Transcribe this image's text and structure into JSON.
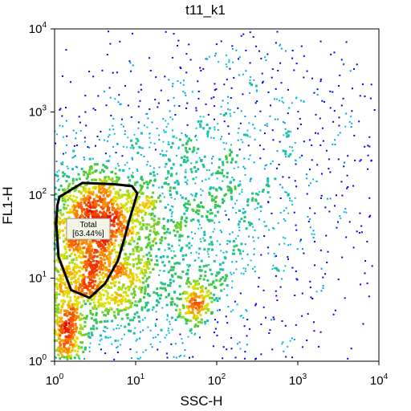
{
  "chart_data": {
    "type": "scatter",
    "title": "t11_k1",
    "xlabel": "SSC-H",
    "ylabel": "FL1-H",
    "x_scale": "log",
    "y_scale": "log",
    "xlim": [
      1,
      10000
    ],
    "ylim": [
      1,
      10000
    ],
    "x_ticks": [
      {
        "value": 1,
        "mantissa": "10",
        "exp": "0"
      },
      {
        "value": 10,
        "mantissa": "10",
        "exp": "1"
      },
      {
        "value": 100,
        "mantissa": "10",
        "exp": "2"
      },
      {
        "value": 1000,
        "mantissa": "10",
        "exp": "3"
      },
      {
        "value": 10000,
        "mantissa": "10",
        "exp": "4"
      }
    ],
    "y_ticks": [
      {
        "value": 1,
        "mantissa": "10",
        "exp": "0"
      },
      {
        "value": 10,
        "mantissa": "10",
        "exp": "1"
      },
      {
        "value": 100,
        "mantissa": "10",
        "exp": "2"
      },
      {
        "value": 1000,
        "mantissa": "10",
        "exp": "3"
      },
      {
        "value": 10000,
        "mantissa": "10",
        "exp": "4"
      }
    ],
    "grid": false,
    "coloring": "density (blue-green-yellow-red)",
    "populations": [
      {
        "center": [
          3,
          12
        ],
        "density": "high"
      },
      {
        "center": [
          3.5,
          60
        ],
        "density": "high"
      },
      {
        "center": [
          1.2,
          1.5
        ],
        "density": "high"
      },
      {
        "center": [
          55,
          5
        ],
        "density": "medium"
      },
      {
        "center": [
          300,
          250
        ],
        "density": "low"
      }
    ],
    "gate": {
      "label": "Total",
      "percent": "[63.44%]",
      "polygon": [
        [
          1.15,
          95
        ],
        [
          2.2,
          140
        ],
        [
          5.5,
          135
        ],
        [
          9.0,
          128
        ],
        [
          10.5,
          105
        ],
        [
          8.2,
          47
        ],
        [
          7.2,
          29
        ],
        [
          6.0,
          16
        ],
        [
          4.2,
          8.6
        ],
        [
          2.7,
          5.8
        ],
        [
          1.6,
          7.2
        ],
        [
          1.12,
          18
        ],
        [
          1.05,
          45
        ],
        [
          1.08,
          75
        ]
      ]
    },
    "colors": {
      "sparse": "#0000ee",
      "outline": "#000000"
    }
  }
}
